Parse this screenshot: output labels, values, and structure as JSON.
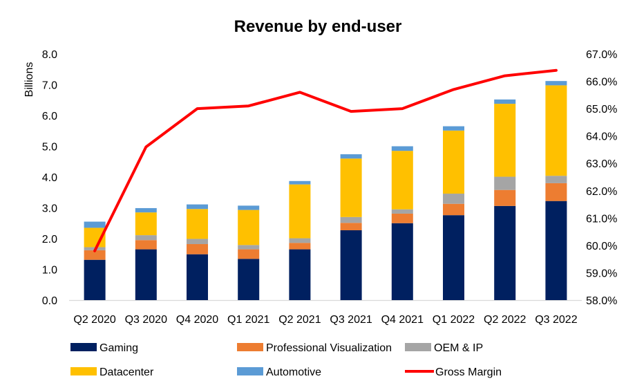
{
  "chart_data": {
    "type": "bar",
    "stacked": true,
    "title": "Revenue by end-user",
    "ylabel": "Billions",
    "ylim": [
      0,
      8
    ],
    "y_ticks": [
      "0.0",
      "1.0",
      "2.0",
      "3.0",
      "4.0",
      "5.0",
      "6.0",
      "7.0",
      "8.0"
    ],
    "y2lim": [
      58,
      67
    ],
    "y2_ticks": [
      "58.0%",
      "59.0%",
      "60.0%",
      "61.0%",
      "62.0%",
      "63.0%",
      "64.0%",
      "65.0%",
      "66.0%",
      "67.0%"
    ],
    "categories": [
      "Q2 2020",
      "Q3 2020",
      "Q4 2020",
      "Q1 2021",
      "Q2 2021",
      "Q3 2021",
      "Q4 2021",
      "Q1 2022",
      "Q2 2022",
      "Q3 2022"
    ],
    "series": [
      {
        "name": "Gaming",
        "color": "#002060",
        "values": [
          1.31,
          1.65,
          1.49,
          1.34,
          1.65,
          2.27,
          2.5,
          2.76,
          3.06,
          3.22
        ]
      },
      {
        "name": "Professional Visualization",
        "color": "#ED7D31",
        "values": [
          0.31,
          0.3,
          0.33,
          0.31,
          0.21,
          0.24,
          0.31,
          0.37,
          0.52,
          0.58
        ]
      },
      {
        "name": "OEM & IP",
        "color": "#A5A5A5",
        "values": [
          0.1,
          0.16,
          0.17,
          0.14,
          0.15,
          0.19,
          0.14,
          0.33,
          0.43,
          0.24
        ]
      },
      {
        "name": "Datacenter",
        "color": "#FFC000",
        "values": [
          0.63,
          0.74,
          0.97,
          1.14,
          1.75,
          1.9,
          1.9,
          2.05,
          2.37,
          2.94
        ]
      },
      {
        "name": "Automotive",
        "color": "#5B9BD5",
        "values": [
          0.2,
          0.14,
          0.15,
          0.14,
          0.11,
          0.14,
          0.15,
          0.14,
          0.14,
          0.14
        ]
      }
    ],
    "line": {
      "name": "Gross Margin",
      "color": "#FF0000",
      "axis": "secondary",
      "values": [
        59.8,
        63.6,
        65.0,
        65.1,
        65.6,
        64.9,
        65.0,
        65.7,
        66.2,
        66.4
      ]
    },
    "legend": {
      "position": "bottom",
      "order": [
        "Gaming",
        "Professional Visualization",
        "OEM & IP",
        "Datacenter",
        "Automotive",
        "Gross Margin"
      ]
    },
    "grid": false
  }
}
